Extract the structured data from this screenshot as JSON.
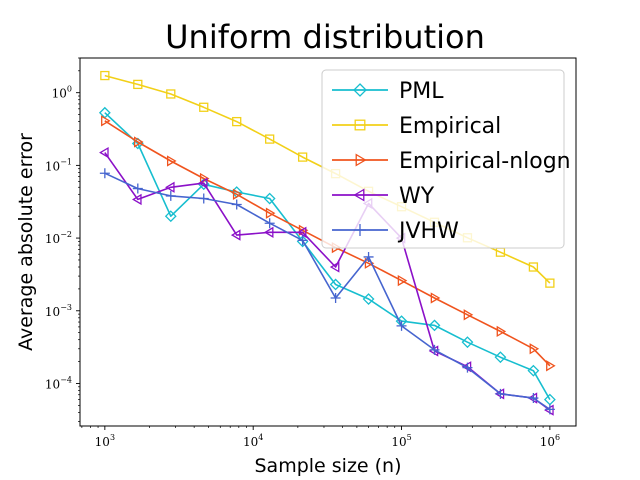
{
  "chart_data": {
    "type": "line",
    "title": "Uniform distribution",
    "xlabel": "Sample size (n)",
    "ylabel": "Average absolute error",
    "xscale": "log",
    "yscale": "log",
    "xlim": [
      680,
      1500000
    ],
    "ylim": [
      2.6e-05,
      3.0
    ],
    "xticks": [
      {
        "base": "10",
        "exp": "3",
        "value": 1000
      },
      {
        "base": "10",
        "exp": "4",
        "value": 10000
      },
      {
        "base": "10",
        "exp": "5",
        "value": 100000
      },
      {
        "base": "10",
        "exp": "6",
        "value": 1000000
      }
    ],
    "yticks": [
      {
        "base": "10",
        "exp": "0",
        "value": 1
      },
      {
        "base": "10",
        "exp": "−1",
        "value": 0.1
      },
      {
        "base": "10",
        "exp": "−2",
        "value": 0.01
      },
      {
        "base": "10",
        "exp": "−3",
        "value": 0.001
      },
      {
        "base": "10",
        "exp": "−4",
        "value": 0.0001
      }
    ],
    "legend_position": "top-right",
    "x": [
      1000,
      1668,
      2783,
      4642,
      7743,
      12915,
      21544,
      35938,
      59948,
      100000,
      166810,
      278256,
      464159,
      774264,
      1000000
    ],
    "series": [
      {
        "name": "PML",
        "color": "#17becf",
        "marker": "diamond",
        "values": [
          0.53,
          0.2,
          0.02,
          0.055,
          0.043,
          0.035,
          0.009,
          0.0023,
          0.00145,
          0.00072,
          0.00063,
          0.00037,
          0.00023,
          0.00015,
          6e-05
        ]
      },
      {
        "name": "Empirical",
        "color": "#f2d018",
        "marker": "square",
        "values": [
          1.72,
          1.3,
          0.96,
          0.63,
          0.4,
          0.23,
          0.13,
          0.077,
          0.044,
          0.027,
          0.0165,
          0.0101,
          0.0064,
          0.004,
          0.0024
        ]
      },
      {
        "name": "Empirical-nlogn",
        "color": "#f0541e",
        "marker": "triangle-right",
        "values": [
          0.41,
          0.21,
          0.115,
          0.066,
          0.04,
          0.022,
          0.0128,
          0.0074,
          0.0045,
          0.0026,
          0.0015,
          0.00088,
          0.00052,
          0.0003,
          0.000175
        ]
      },
      {
        "name": "WY",
        "color": "#8b10c8",
        "marker": "triangle-left",
        "values": [
          0.15,
          0.034,
          0.05,
          0.057,
          0.011,
          0.012,
          0.012,
          0.004,
          0.03,
          0.01,
          0.00028,
          0.00017,
          7.2e-05,
          6.3e-05,
          4.3e-05
        ]
      },
      {
        "name": "JVHW",
        "color": "#4665cf",
        "marker": "plus",
        "values": [
          0.078,
          0.048,
          0.038,
          0.035,
          0.029,
          0.016,
          0.0093,
          0.0015,
          0.0055,
          0.00062,
          0.00029,
          0.000165,
          7.2e-05,
          6.3e-05,
          4.4e-05
        ]
      }
    ]
  }
}
